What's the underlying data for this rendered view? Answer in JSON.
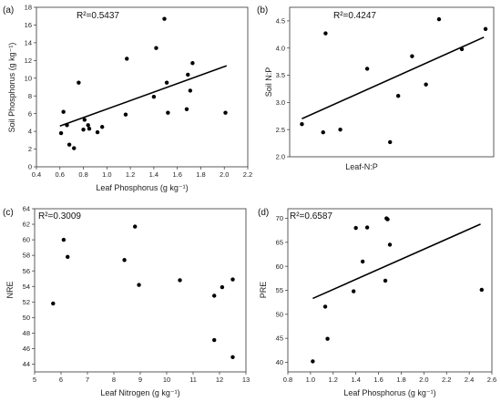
{
  "chart_data": [
    {
      "type": "scatter",
      "panel_label": "(a)",
      "r2": "R²=0.5437",
      "xlabel": "Leaf Phosphorus (g kg⁻¹)",
      "ylabel": "Soil Phosphorus (g kg⁻¹)",
      "xlim": [
        0.4,
        2.2
      ],
      "ylim": [
        0,
        18
      ],
      "xticks": [
        0.4,
        0.6,
        0.8,
        1.0,
        1.2,
        1.4,
        1.6,
        1.8,
        2.0,
        2.2
      ],
      "xtick_labels": [
        "0.4",
        "0.6",
        "0.8",
        "1.0",
        "1.2",
        "1.4",
        "1.6",
        "1.8",
        "2.0",
        "2.2"
      ],
      "yticks": [
        0,
        2,
        4,
        6,
        8,
        10,
        12,
        14,
        16,
        18
      ],
      "ytick_labels": [
        "0",
        "2",
        "4",
        "6",
        "8",
        "10",
        "12",
        "14",
        "16",
        "18"
      ],
      "x": [
        0.61,
        0.63,
        0.66,
        0.68,
        0.72,
        0.76,
        0.8,
        0.81,
        0.84,
        0.85,
        0.92,
        0.96,
        1.16,
        1.17,
        1.4,
        1.42,
        1.49,
        1.51,
        1.52,
        1.68,
        1.69,
        1.71,
        1.73,
        2.01
      ],
      "y": [
        3.8,
        6.2,
        4.7,
        2.5,
        2.1,
        9.5,
        4.2,
        5.3,
        4.7,
        4.3,
        3.9,
        4.5,
        5.9,
        12.2,
        7.9,
        13.4,
        16.7,
        9.5,
        6.1,
        6.5,
        10.4,
        8.6,
        11.7,
        6.1
      ],
      "trendline": {
        "x": [
          0.6,
          2.02
        ],
        "y": [
          4.6,
          11.4
        ]
      }
    },
    {
      "type": "scatter",
      "panel_label": "(b)",
      "r2": "R²=0.4247",
      "xlabel": "Leaf-N:P",
      "ylabel": "Soil N:P",
      "xlim": [
        12.5,
        37.5
      ],
      "ylim": [
        2.0,
        4.75
      ],
      "xticks": [],
      "xtick_labels": [],
      "yticks": [
        2.0,
        2.5,
        3.0,
        3.5,
        4.0,
        4.5
      ],
      "ytick_labels": [
        "2.0",
        "2.5",
        "3.0",
        "3.5",
        "4.0",
        "4.5"
      ],
      "x": [
        14.0,
        16.6,
        16.9,
        18.7,
        22.0,
        24.8,
        25.8,
        27.5,
        29.2,
        30.8,
        33.6,
        36.5
      ],
      "y": [
        2.6,
        2.45,
        4.27,
        2.5,
        3.62,
        2.27,
        3.12,
        3.85,
        3.33,
        4.53,
        3.98,
        4.35
      ],
      "trendline": {
        "x": [
          14.0,
          36.3
        ],
        "y": [
          2.7,
          4.2
        ]
      }
    },
    {
      "type": "scatter",
      "panel_label": "(c)",
      "r2": "R²=0.3009",
      "xlabel": "Leaf Nitrogen (g kg⁻¹)",
      "ylabel": "NRE",
      "xlim": [
        5,
        13
      ],
      "ylim": [
        43,
        64
      ],
      "xticks": [
        5,
        6,
        7,
        8,
        9,
        10,
        11,
        12,
        13
      ],
      "xtick_labels": [
        "5",
        "6",
        "7",
        "8",
        "9",
        "10",
        "11",
        "12",
        "13"
      ],
      "yticks": [
        44,
        46,
        48,
        50,
        52,
        54,
        56,
        58,
        60,
        62,
        64
      ],
      "ytick_labels": [
        "44",
        "46",
        "48",
        "50",
        "52",
        "54",
        "56",
        "58",
        "60",
        "62",
        "64"
      ],
      "x": [
        5.7,
        6.1,
        6.25,
        8.4,
        8.8,
        8.95,
        10.5,
        11.8,
        11.8,
        12.1,
        12.5,
        12.5
      ],
      "y": [
        51.8,
        60.0,
        57.8,
        57.4,
        61.7,
        54.2,
        54.8,
        52.8,
        47.1,
        53.9,
        54.9,
        44.9
      ],
      "trendline": null
    },
    {
      "type": "scatter",
      "panel_label": "(d)",
      "r2": "R²=0.6587",
      "xlabel": "Leaf Phosphorus (g kg⁻¹)",
      "ylabel": "PRE",
      "xlim": [
        0.8,
        2.6
      ],
      "ylim": [
        38,
        72
      ],
      "xticks": [
        0.8,
        1.0,
        1.2,
        1.4,
        1.6,
        1.8,
        2.0,
        2.2,
        2.4,
        2.6
      ],
      "xtick_labels": [
        "0.8",
        "1.0",
        "1.2",
        "1.4",
        "1.6",
        "1.8",
        "2.0",
        "2.2",
        "2.4",
        "2.6"
      ],
      "yticks": [
        40,
        45,
        50,
        55,
        60,
        65,
        70
      ],
      "ytick_labels": [
        "40",
        "45",
        "50",
        "55",
        "60",
        "65",
        "70"
      ],
      "x": [
        1.02,
        1.13,
        1.15,
        1.38,
        1.4,
        1.46,
        1.5,
        1.66,
        1.67,
        1.68,
        1.7,
        2.51
      ],
      "y": [
        40.2,
        51.6,
        44.9,
        54.8,
        68.0,
        61.0,
        68.1,
        57.0,
        70.0,
        69.8,
        64.5,
        55.1
      ],
      "trendline": {
        "x": [
          1.02,
          2.5
        ],
        "y": [
          53.3,
          68.8
        ]
      }
    }
  ]
}
